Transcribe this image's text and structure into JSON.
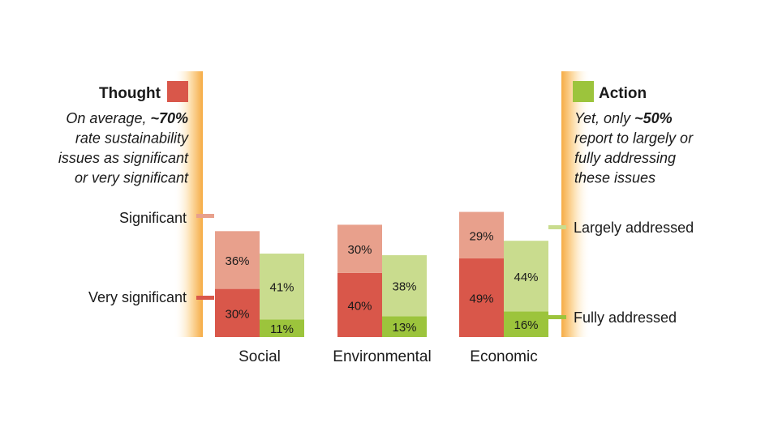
{
  "chart_data": {
    "type": "bar",
    "categories": [
      "Social",
      "Environmental",
      "Economic"
    ],
    "series": [
      {
        "group": "thought",
        "name": "Very significant",
        "values": [
          30,
          40,
          49
        ]
      },
      {
        "group": "thought",
        "name": "Significant",
        "values": [
          36,
          30,
          29
        ]
      },
      {
        "group": "action",
        "name": "Fully addressed",
        "values": [
          11,
          13,
          16
        ]
      },
      {
        "group": "action",
        "name": "Largely addressed",
        "values": [
          41,
          38,
          44
        ]
      }
    ],
    "value_suffix": "%",
    "ylim": [
      0,
      100
    ],
    "stacked": true,
    "grid": false
  },
  "legend": {
    "thought": {
      "title": "Thought",
      "note_lines": [
        {
          "text": "On average, ",
          "bold": "~70%"
        },
        {
          "text": "rate sustainability"
        },
        {
          "text": "issues as significant"
        },
        {
          "text": "or very significant"
        }
      ],
      "labels": {
        "top": "Significant",
        "bottom": "Very significant"
      }
    },
    "action": {
      "title": "Action",
      "note_lines": [
        {
          "text": "Yet, only ",
          "bold": "~50%"
        },
        {
          "text": "report to largely or"
        },
        {
          "text": "fully addressing"
        },
        {
          "text": "these issues"
        }
      ],
      "labels": {
        "top": "Largely addressed",
        "bottom": "Fully addressed"
      }
    }
  },
  "colors": {
    "very_significant": "#d9574a",
    "significant": "#e8a08c",
    "fully_addressed": "#9cc43c",
    "largely_addressed": "#c9dc8e",
    "band": "#f7b24d"
  }
}
